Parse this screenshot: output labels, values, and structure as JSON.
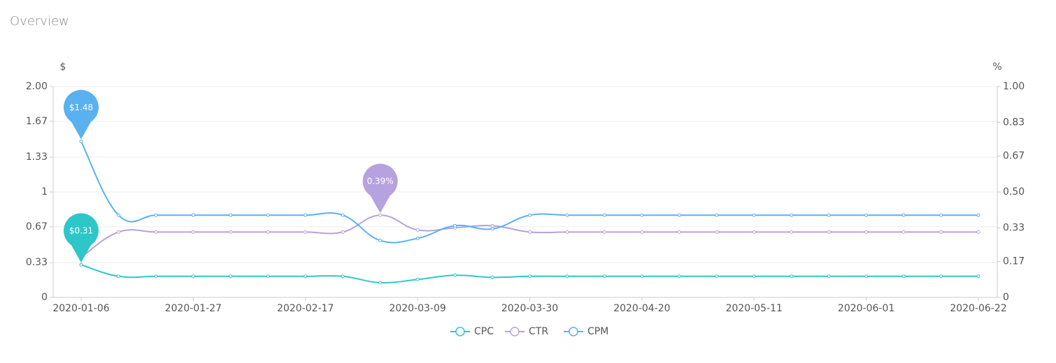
{
  "chart_data": {
    "type": "line",
    "title": "Overview",
    "y_label": "$",
    "y2_label": "%",
    "categories": [
      "2020-01-06",
      null,
      null,
      "2020-01-27",
      null,
      null,
      "2020-02-17",
      null,
      null,
      "2020-03-09",
      null,
      null,
      "2020-03-30",
      null,
      null,
      "2020-04-20",
      null,
      null,
      "2020-05-11",
      null,
      null,
      "2020-06-01",
      null,
      null,
      "2020-06-22"
    ],
    "ylim": [
      0,
      2
    ],
    "yticks": [
      0,
      0.33,
      0.67,
      1,
      1.33,
      1.67,
      {
        "value": 2,
        "label": "2.00"
      }
    ],
    "y2lim": [
      0,
      1
    ],
    "y2ticks": [
      0,
      0.17,
      0.33,
      {
        "value": 0.5,
        "label": "0.50"
      },
      0.67,
      0.83,
      {
        "value": 1,
        "label": "1.00"
      }
    ],
    "grid": true,
    "legend": "bottom",
    "series": [
      {
        "name": "CPC",
        "color": "#2ec7c9",
        "values": [
          0.31,
          0.2,
          0.2,
          0.2,
          0.2,
          0.2,
          0.2,
          0.2,
          0.14,
          0.17,
          0.21,
          0.19,
          0.2,
          0.2,
          0.2,
          0.2,
          0.2,
          0.2,
          0.2,
          0.2,
          0.2,
          0.2,
          0.2,
          0.2,
          0.2
        ],
        "value_labels": [
          "$0.31",
          null,
          null,
          null,
          null,
          null,
          null,
          null,
          null,
          null,
          null,
          null,
          null,
          null,
          null,
          null,
          null,
          null,
          null,
          null,
          null,
          null,
          null,
          null,
          null
        ]
      },
      {
        "name": "CTR",
        "color": "#b6a2de",
        "axis": "y2",
        "values": [
          0.19,
          0.31,
          0.31,
          0.31,
          0.31,
          0.31,
          0.31,
          0.31,
          0.39,
          0.32,
          0.33,
          0.34,
          0.31,
          0.31,
          0.31,
          0.31,
          0.31,
          0.31,
          0.31,
          0.31,
          0.31,
          0.31,
          0.31,
          0.31,
          0.31
        ],
        "value_labels": [
          null,
          null,
          null,
          null,
          null,
          null,
          null,
          null,
          "0.39%",
          null,
          null,
          null,
          null,
          null,
          null,
          null,
          null,
          null,
          null,
          null,
          null,
          null,
          null,
          null,
          null
        ]
      },
      {
        "name": "CPM",
        "color": "#5ab1ef",
        "values": [
          1.48,
          0.78,
          0.78,
          0.78,
          0.78,
          0.78,
          0.78,
          0.78,
          0.54,
          0.56,
          0.68,
          0.65,
          0.78,
          0.78,
          0.78,
          0.78,
          0.78,
          0.78,
          0.78,
          0.78,
          0.78,
          0.78,
          0.78,
          0.78,
          0.78
        ],
        "value_labels": [
          "$1.48",
          null,
          null,
          null,
          null,
          null,
          null,
          null,
          null,
          null,
          null,
          null,
          null,
          null,
          null,
          null,
          null,
          null,
          null,
          null,
          null,
          null,
          null,
          null,
          null
        ]
      }
    ]
  }
}
